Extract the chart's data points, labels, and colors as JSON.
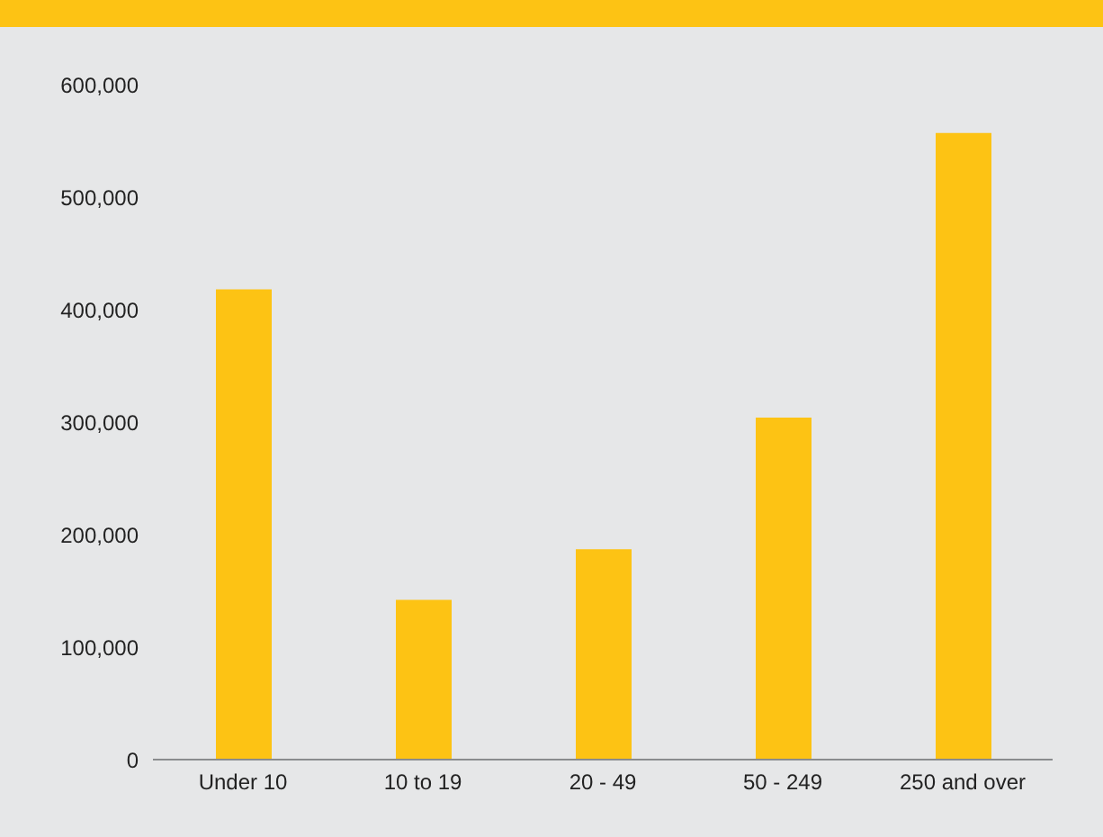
{
  "chart_data": {
    "type": "bar",
    "categories": [
      "Under 10",
      "10 to 19",
      "20 - 49",
      "50 - 249",
      "250 and over"
    ],
    "values": [
      418000,
      142000,
      187000,
      304000,
      557000
    ],
    "color": "#fdc314",
    "ylim": [
      0,
      600000
    ],
    "yticks": [
      {
        "value": 0,
        "label": "0"
      },
      {
        "value": 100000,
        "label": "100,000"
      },
      {
        "value": 200000,
        "label": "200,000"
      },
      {
        "value": 300000,
        "label": "300,000"
      },
      {
        "value": 400000,
        "label": "400,000"
      },
      {
        "value": 500000,
        "label": "500,000"
      },
      {
        "value": 600000,
        "label": "600,000"
      }
    ],
    "grid": false
  }
}
